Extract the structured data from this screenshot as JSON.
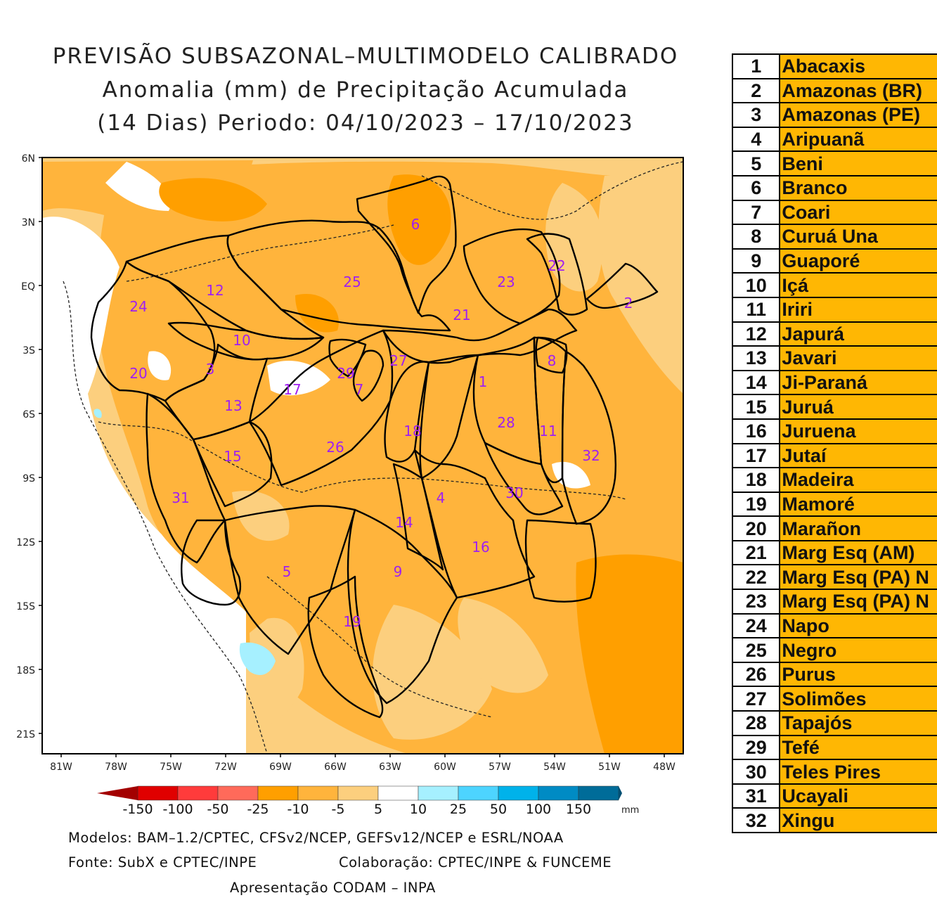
{
  "title": {
    "line1": "PREVISÃO SUBSAZONAL–MULTIMODELO CALIBRADO",
    "line2": "Anomalia (mm) de Precipitação Acumulada",
    "line3": "(14 Dias) Periodo: 04/10/2023 – 17/10/2023"
  },
  "axes": {
    "lat_labels": [
      "6N",
      "3N",
      "EQ",
      "3S",
      "6S",
      "9S",
      "12S",
      "15S",
      "18S",
      "21S"
    ],
    "lon_labels": [
      "81W",
      "78W",
      "75W",
      "72W",
      "69W",
      "66W",
      "63W",
      "60W",
      "57W",
      "54W",
      "51W",
      "48W"
    ]
  },
  "colorbar": {
    "labels": [
      "-150",
      "-100",
      "-50",
      "-25",
      "-10",
      "-5",
      "5",
      "10",
      "25",
      "50",
      "100",
      "150"
    ],
    "unit": "mm",
    "colors": [
      "#a30000",
      "#e00000",
      "#ff3b3b",
      "#ff6a5a",
      "#ff9f00",
      "#ffb43c",
      "#fccf7e",
      "#ffffff",
      "#a6f0ff",
      "#4dd4ff",
      "#00b2ea",
      "#008bc4",
      "#006c99",
      "#004f73"
    ]
  },
  "basin_labels": [
    "1",
    "2",
    "3",
    "4",
    "5",
    "6",
    "7",
    "8",
    "9",
    "10",
    "11",
    "12",
    "13",
    "14",
    "15",
    "16",
    "17",
    "18",
    "19",
    "20",
    "21",
    "22",
    "23",
    "24",
    "25",
    "26",
    "27",
    "28",
    "29",
    "30",
    "31",
    "32"
  ],
  "footer": {
    "models": "Modelos: BAM–1.2/CPTEC, CFSv2/NCEP, GEFSv12/NCEP e ESRL/NOAA",
    "source": "Fonte: SubX e CPTEC/INPE",
    "collab": "Colaboração: CPTEC/INPE & FUNCEME",
    "presentation": "Apresentação CODAM – INPA"
  },
  "basins": [
    {
      "num": "1",
      "name": "Abacaxis"
    },
    {
      "num": "2",
      "name": "Amazonas (BR)"
    },
    {
      "num": "3",
      "name": "Amazonas (PE)"
    },
    {
      "num": "4",
      "name": "Aripuanã"
    },
    {
      "num": "5",
      "name": "Beni"
    },
    {
      "num": "6",
      "name": "Branco"
    },
    {
      "num": "7",
      "name": "Coari"
    },
    {
      "num": "8",
      "name": "Curuá Una"
    },
    {
      "num": "9",
      "name": "Guaporé"
    },
    {
      "num": "10",
      "name": "Içá"
    },
    {
      "num": "11",
      "name": "Iriri"
    },
    {
      "num": "12",
      "name": "Japurá"
    },
    {
      "num": "13",
      "name": "Javari"
    },
    {
      "num": "14",
      "name": "Ji-Paraná"
    },
    {
      "num": "15",
      "name": "Juruá"
    },
    {
      "num": "16",
      "name": "Juruena"
    },
    {
      "num": "17",
      "name": "Jutaí"
    },
    {
      "num": "18",
      "name": "Madeira"
    },
    {
      "num": "19",
      "name": "Mamoré"
    },
    {
      "num": "20",
      "name": "Marañon"
    },
    {
      "num": "21",
      "name": "Marg Esq (AM)"
    },
    {
      "num": "22",
      "name": "Marg Esq (PA) N"
    },
    {
      "num": "23",
      "name": "Marg Esq (PA) N"
    },
    {
      "num": "24",
      "name": "Napo"
    },
    {
      "num": "25",
      "name": "Negro"
    },
    {
      "num": "26",
      "name": "Purus"
    },
    {
      "num": "27",
      "name": "Solimões"
    },
    {
      "num": "28",
      "name": "Tapajós"
    },
    {
      "num": "29",
      "name": "Tefé"
    },
    {
      "num": "30",
      "name": "Teles Pires"
    },
    {
      "num": "31",
      "name": "Ucayali"
    },
    {
      "num": "32",
      "name": "Xingu"
    }
  ]
}
